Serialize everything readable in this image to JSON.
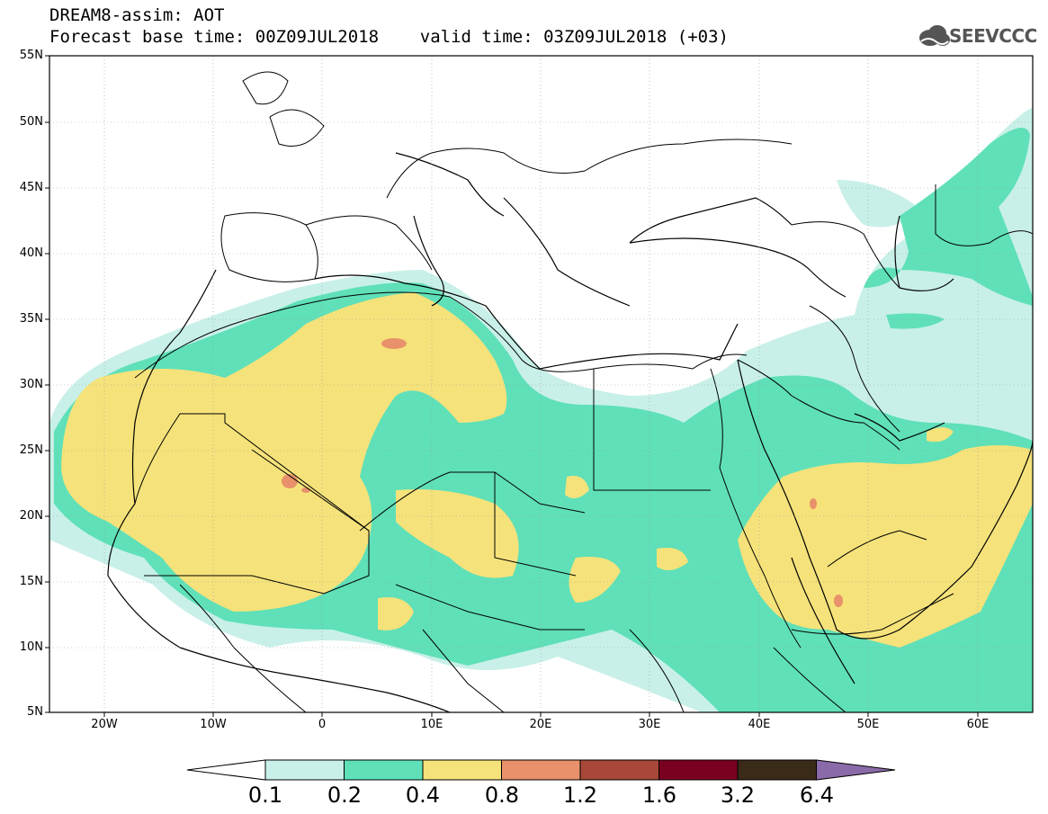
{
  "title": {
    "line1": "DREAM8-assim: AOT",
    "line2": "Forecast base time: 00Z09JUL2018    valid time: 03Z09JUL2018 (+03)"
  },
  "logo": {
    "text": "SEEVCCC",
    "icon": "cloud-icon"
  },
  "axes": {
    "lat_labels": [
      "55N",
      "50N",
      "45N",
      "40N",
      "35N",
      "30N",
      "25N",
      "20N",
      "15N",
      "10N",
      "5N"
    ],
    "lon_labels": [
      "20W",
      "10W",
      "0",
      "10E",
      "20E",
      "30E",
      "40E",
      "50E",
      "60E"
    ]
  },
  "colorbar": {
    "levels": [
      "0.1",
      "0.2",
      "0.4",
      "0.8",
      "1.2",
      "1.6",
      "3.2",
      "6.4"
    ],
    "colors": [
      "#ffffff",
      "#c8f0e8",
      "#5fe0b8",
      "#f5e27a",
      "#e8916a",
      "#a84838",
      "#7a0020",
      "#3a2a18",
      "#8a6aa8"
    ]
  },
  "map": {
    "variable": "AOT",
    "lon_range": [
      -25,
      65
    ],
    "lat_range": [
      5,
      55
    ],
    "grid_lines": true
  }
}
